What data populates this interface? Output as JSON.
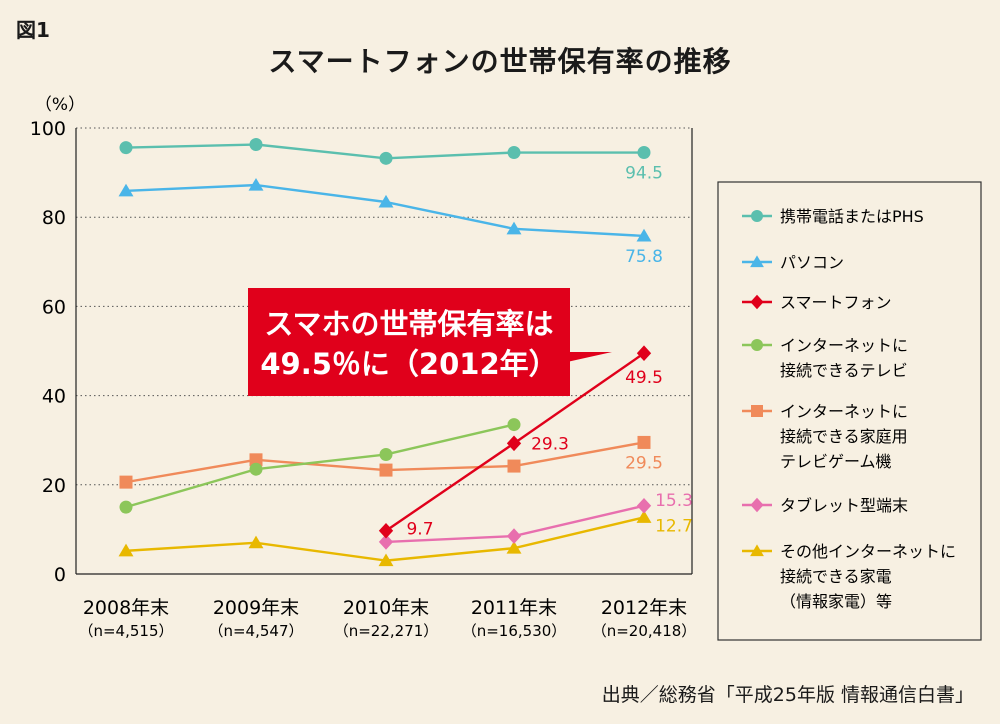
{
  "figure_label": "図1",
  "source": "出典／総務省「平成25年版 情報通信白書」",
  "callout": {
    "line1": "スマホの世帯保有率は",
    "line2": "49.5％に（2012年）"
  },
  "colors": {
    "mobile": "#5bbfae",
    "pc": "#4ab5e8",
    "smartphone": "#e0001b",
    "nettv": "#8cc65a",
    "console": "#f08a5a",
    "tablet": "#e86fae",
    "other": "#e8b800"
  },
  "chart_data": {
    "type": "line",
    "title": "スマートフォンの世帯保有率の推移",
    "ylabel": "（%）",
    "ylim": [
      0,
      100
    ],
    "yticks": [
      "0",
      "20",
      "40",
      "60",
      "80",
      "100"
    ],
    "categories": [
      "2008年末",
      "2009年末",
      "2010年末",
      "2011年末",
      "2012年末"
    ],
    "category_notes": [
      "（n=4,515）",
      "（n=4,547）",
      "（n=22,271）",
      "（n=16,530）",
      "（n=20,418）"
    ],
    "grid": "horizontal dotted",
    "legend_position": "right",
    "series": [
      {
        "key": "mobile",
        "name": "携帯電話またはPHS",
        "marker": "circle",
        "values": [
          95.6,
          96.3,
          93.2,
          94.5,
          94.5
        ],
        "labels": [
          "",
          "",
          "",
          "",
          "94.5"
        ]
      },
      {
        "key": "pc",
        "name": "パソコン",
        "marker": "triangle",
        "values": [
          85.9,
          87.2,
          83.4,
          77.4,
          75.8
        ],
        "labels": [
          "",
          "",
          "",
          "",
          "75.8"
        ]
      },
      {
        "key": "smartphone",
        "name": "スマートフォン",
        "marker": "diamond",
        "values": [
          null,
          null,
          9.7,
          29.3,
          49.5
        ],
        "labels": [
          "",
          "",
          "9.7",
          "29.3",
          "49.5"
        ]
      },
      {
        "key": "nettv",
        "name": "インターネットに\n接続できるテレビ",
        "marker": "circle",
        "values": [
          15.0,
          23.5,
          26.8,
          33.5,
          null
        ],
        "labels": [
          "",
          "",
          "",
          "",
          ""
        ]
      },
      {
        "key": "console",
        "name": "インターネットに\n接続できる家庭用\nテレビゲーム機",
        "marker": "square",
        "values": [
          20.6,
          25.6,
          23.3,
          24.2,
          29.5
        ],
        "labels": [
          "",
          "",
          "",
          "",
          "29.5"
        ]
      },
      {
        "key": "tablet",
        "name": "タブレット型端末",
        "marker": "diamond",
        "values": [
          null,
          null,
          7.2,
          8.5,
          15.3
        ],
        "labels": [
          "",
          "",
          "",
          "",
          "15.3"
        ]
      },
      {
        "key": "other",
        "name": "その他インターネットに\n接続できる家電\n（情報家電）等",
        "marker": "triangle",
        "values": [
          5.2,
          7.0,
          3.0,
          5.8,
          12.7
        ],
        "labels": [
          "",
          "",
          "",
          "",
          "12.7"
        ]
      }
    ]
  }
}
